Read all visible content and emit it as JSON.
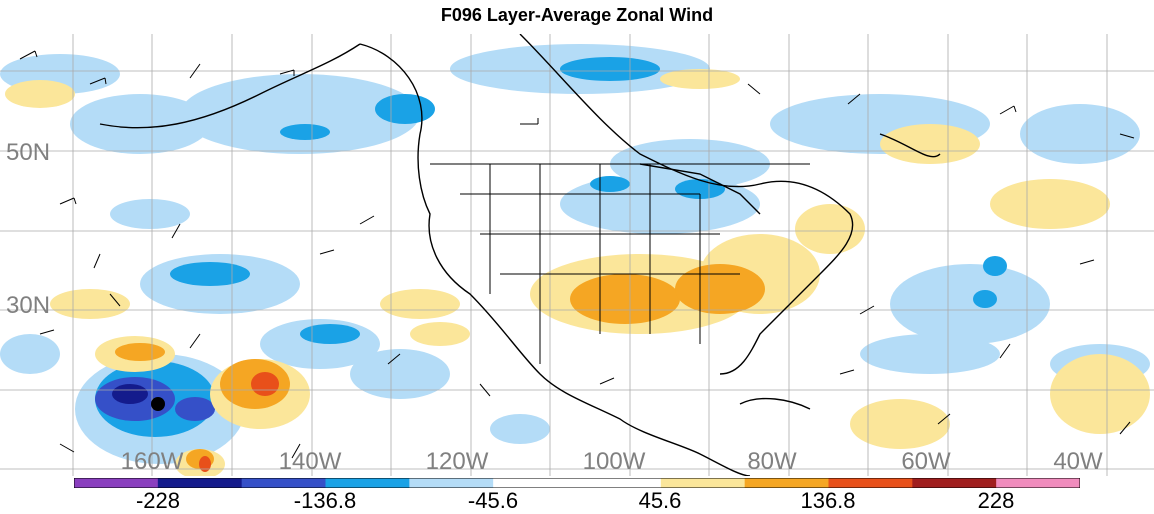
{
  "title": "F096 Layer-Average Zonal Wind",
  "lat_labels": [
    "50N",
    "30N"
  ],
  "lon_labels": [
    "160W",
    "140W",
    "120W",
    "100W",
    "80W",
    "60W",
    "40W"
  ],
  "colorbar": {
    "labels": [
      "-228",
      "-136.8",
      "-45.6",
      "45.6",
      "136.8",
      "228"
    ],
    "colors": [
      "#8a3fbf",
      "#141b8c",
      "#3550c8",
      "#1aa2e6",
      "#b4dcf7",
      "#ffffff",
      "#ffffff",
      "#fbe69a",
      "#f5a623",
      "#e8501a",
      "#a01e1e",
      "#f08cbd"
    ]
  },
  "colors": {
    "light_blue": "#b4dcf7",
    "medium_blue": "#1aa2e6",
    "dark_blue": "#3550c8",
    "navy": "#141b8c",
    "light_yellow": "#fbe69a",
    "orange": "#f5a623",
    "red_orange": "#e8501a"
  }
}
